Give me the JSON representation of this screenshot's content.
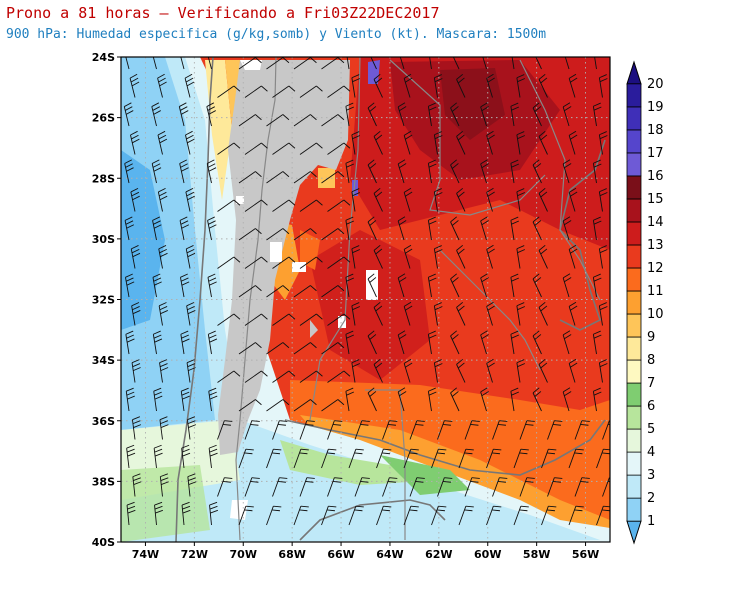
{
  "title": "Prono a 81 horas — Verificando a Fri03Z22DEC2017",
  "subtitle": "900 hPa: Humedad especifica (g/kg,somb) y Viento (kt). Mascara: 1500m",
  "map": {
    "lat_ticks": [
      "24S",
      "26S",
      "28S",
      "30S",
      "32S",
      "34S",
      "36S",
      "38S",
      "40S"
    ],
    "lon_ticks": [
      "74W",
      "72W",
      "70W",
      "68W",
      "66W",
      "64W",
      "62W",
      "60W",
      "58W",
      "56W"
    ]
  },
  "colorbar": {
    "levels": [
      "1",
      "2",
      "3",
      "4",
      "5",
      "6",
      "7",
      "8",
      "9",
      "10",
      "11",
      "12",
      "13",
      "14",
      "15",
      "16",
      "17",
      "18",
      "19",
      "20"
    ],
    "colors": [
      "#5ab4ee",
      "#8fd2f5",
      "#bfe9f8",
      "#e4f6f9",
      "#e6f7dc",
      "#b7e59c",
      "#7fcd71",
      "#fef9c1",
      "#fee99a",
      "#fec559",
      "#fda030",
      "#fb6b1d",
      "#e93a1e",
      "#cd1c1c",
      "#a8121c",
      "#7a0f19",
      "#6e5ad6",
      "#5545cc",
      "#3f2fb8",
      "#2a1c9c",
      "#1c0f80"
    ]
  }
}
